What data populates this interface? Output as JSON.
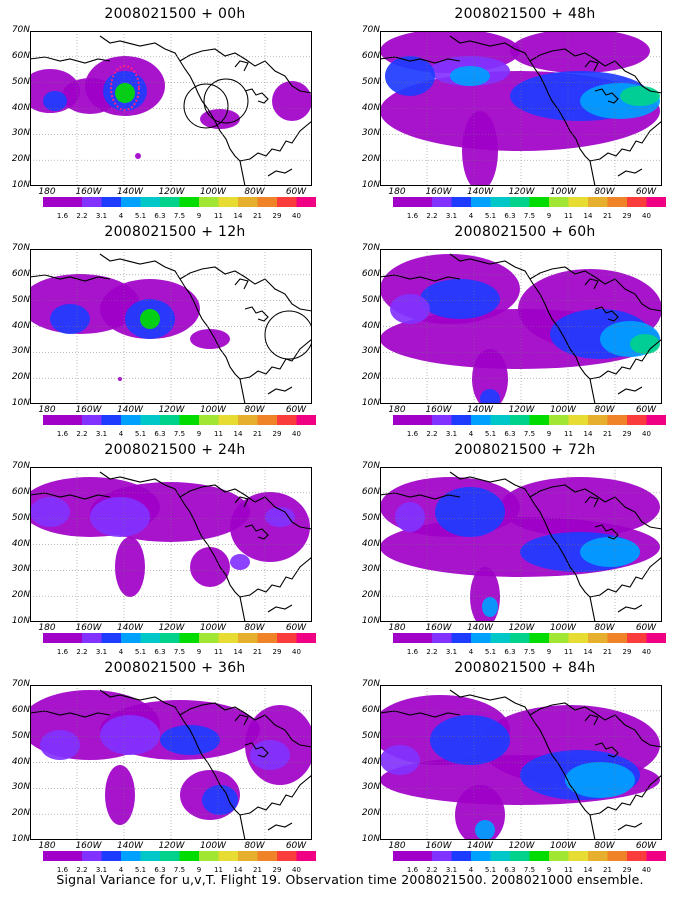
{
  "panels": [
    {
      "title": "2008021500 + 00h",
      "lead": "00h"
    },
    {
      "title": "2008021500 + 48h",
      "lead": "48h"
    },
    {
      "title": "2008021500 + 12h",
      "lead": "12h"
    },
    {
      "title": "2008021500 + 60h",
      "lead": "60h"
    },
    {
      "title": "2008021500 + 24h",
      "lead": "24h"
    },
    {
      "title": "2008021500 + 72h",
      "lead": "72h"
    },
    {
      "title": "2008021500 + 36h",
      "lead": "36h"
    },
    {
      "title": "2008021500 + 84h",
      "lead": "84h"
    }
  ],
  "axes": {
    "lat_labels": [
      "70N",
      "60N",
      "50N",
      "40N",
      "30N",
      "20N",
      "10N"
    ],
    "lon_labels": [
      "180",
      "160W",
      "140W",
      "120W",
      "100W",
      "80W",
      "60W"
    ]
  },
  "colorbar": {
    "labels": [
      "1.6",
      "2.2",
      "3.1",
      "4",
      "5.1",
      "6.3",
      "7.5",
      "9",
      "11",
      "14",
      "21",
      "29",
      "40"
    ],
    "colors": [
      "#a000c8",
      "#8232ff",
      "#1e3cff",
      "#00a0ff",
      "#00c8c8",
      "#00d28c",
      "#00dc00",
      "#a0e632",
      "#e6dc32",
      "#e6af2d",
      "#f08228",
      "#fa3c3c",
      "#f00082"
    ]
  },
  "caption": "Signal Variance for u,v,T. Flight 19. Observation time 2008021500. 2008021000 ensemble."
}
